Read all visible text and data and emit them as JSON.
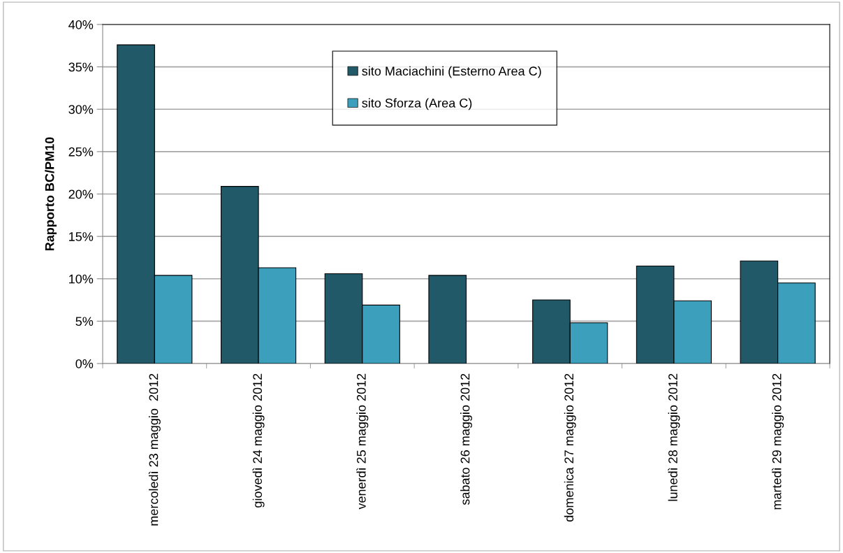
{
  "chart_data": {
    "type": "bar",
    "ylabel": "Rapporto BC/PM10",
    "categories": [
      "mercoledì 23 maggio  2012",
      "giovedì 24 maggio 2012",
      "venerdì 25 maggio 2012",
      "sabato 26 maggio 2012",
      "domenica 27 maggio 2012",
      "lunedì 28 maggio 2012",
      "martedì 29 maggio 2012"
    ],
    "series": [
      {
        "name": "sito Maciachini (Esterno Area C)",
        "color": "#215968",
        "values": [
          37.6,
          20.9,
          10.6,
          10.4,
          7.5,
          11.5,
          12.1
        ]
      },
      {
        "name": "sito Sforza (Area C)",
        "color": "#3c9fbb",
        "values": [
          10.4,
          11.3,
          6.9,
          null,
          4.8,
          7.4,
          9.5
        ]
      }
    ],
    "ylim": [
      0,
      40
    ],
    "yticks": [
      {
        "value": 0,
        "label": "0%"
      },
      {
        "value": 5,
        "label": "5%"
      },
      {
        "value": 10,
        "label": "10%"
      },
      {
        "value": 15,
        "label": "15%"
      },
      {
        "value": 20,
        "label": "20%"
      },
      {
        "value": 25,
        "label": "25%"
      },
      {
        "value": 30,
        "label": "30%"
      },
      {
        "value": 35,
        "label": "35%"
      },
      {
        "value": 40,
        "label": "40%"
      }
    ],
    "grid": "y",
    "legend": "top"
  }
}
